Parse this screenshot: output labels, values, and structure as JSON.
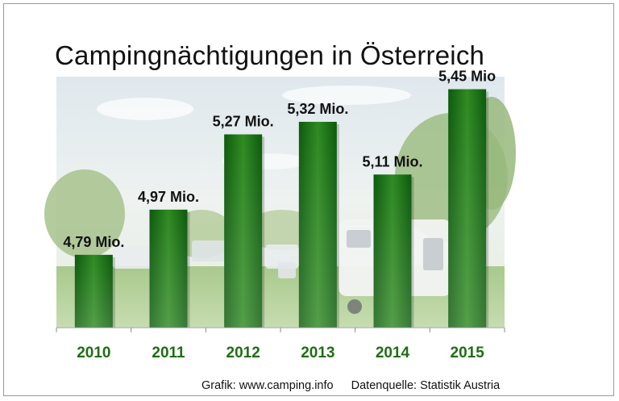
{
  "title": "Campingnächtigungen in Österreich",
  "footer": {
    "grafik": "Grafik: www.camping.info",
    "quelle": "Datenquelle: Statistik Austria"
  },
  "colors": {
    "bar_dark": "#0c5a0c",
    "bar_light": "#3e9a2c",
    "year_label": "#1f6e14",
    "value_label": "#111111"
  },
  "chart_data": {
    "type": "bar",
    "title": "Campingnächtigungen in Österreich",
    "xlabel": "",
    "ylabel": "",
    "categories": [
      "2010",
      "2011",
      "2012",
      "2013",
      "2014",
      "2015"
    ],
    "values": [
      4.79,
      4.97,
      5.27,
      5.32,
      5.11,
      5.45
    ],
    "value_labels": [
      "4,79 Mio.",
      "4,97 Mio.",
      "5,27 Mio.",
      "5,32 Mio.",
      "5,11 Mio.",
      "5,45 Mio"
    ],
    "ylim": [
      4.5,
      5.5
    ],
    "grid": false,
    "legend": "none",
    "background": "camping site photo"
  }
}
